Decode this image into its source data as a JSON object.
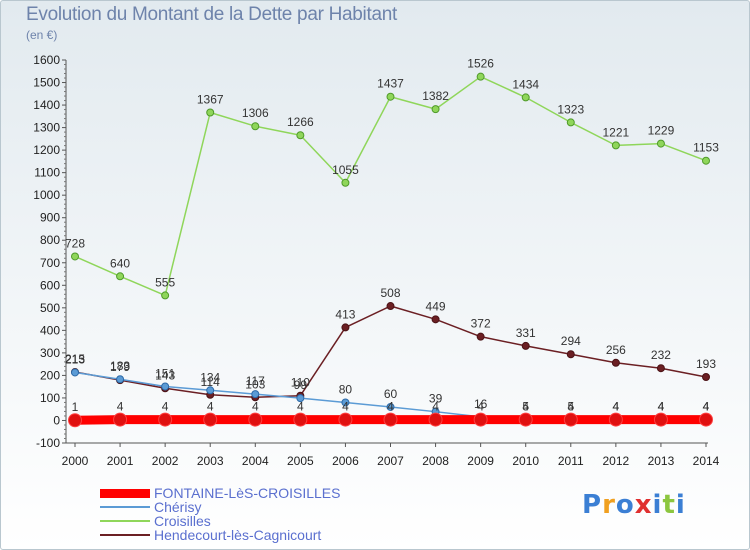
{
  "title": "Evolution du Montant de la Dette par Habitant",
  "subtitle": "(en €)",
  "logo": "Proxiti",
  "chart_data": {
    "type": "line",
    "title": "Evolution du Montant de la Dette par Habitant",
    "ylabel": "(en €)",
    "xlabel": "",
    "x": [
      2000,
      2001,
      2002,
      2003,
      2004,
      2005,
      2006,
      2007,
      2008,
      2009,
      2010,
      2011,
      2012,
      2013,
      2014
    ],
    "ylim": [
      -100,
      1600
    ],
    "yticks": [
      -100,
      0,
      100,
      200,
      300,
      400,
      500,
      600,
      700,
      800,
      900,
      1000,
      1100,
      1200,
      1300,
      1400,
      1500,
      1600
    ],
    "grid": false,
    "legend_position": "bottom-left",
    "series": [
      {
        "name": "FONTAINE-LèS-CROISILLES",
        "color": "#ff0000",
        "values": [
          1,
          4,
          4,
          4,
          4,
          4,
          4,
          4,
          4,
          4,
          4,
          4,
          4,
          4,
          4
        ]
      },
      {
        "name": "Chérisy",
        "color": "#5b9bd5",
        "values": [
          213,
          183,
          151,
          134,
          117,
          99,
          80,
          60,
          39,
          16,
          5,
          5,
          4,
          4,
          4
        ]
      },
      {
        "name": "Croisilles",
        "color": "#8fd65a",
        "values": [
          728,
          640,
          555,
          1367,
          1306,
          1266,
          1055,
          1437,
          1382,
          1526,
          1434,
          1323,
          1221,
          1229,
          1153
        ]
      },
      {
        "name": "Hendecourt-lès-Cagnicourt",
        "color": "#6b1f23",
        "values": [
          215,
          179,
          143,
          114,
          103,
          110,
          413,
          508,
          449,
          372,
          331,
          294,
          256,
          232,
          193
        ]
      }
    ]
  }
}
